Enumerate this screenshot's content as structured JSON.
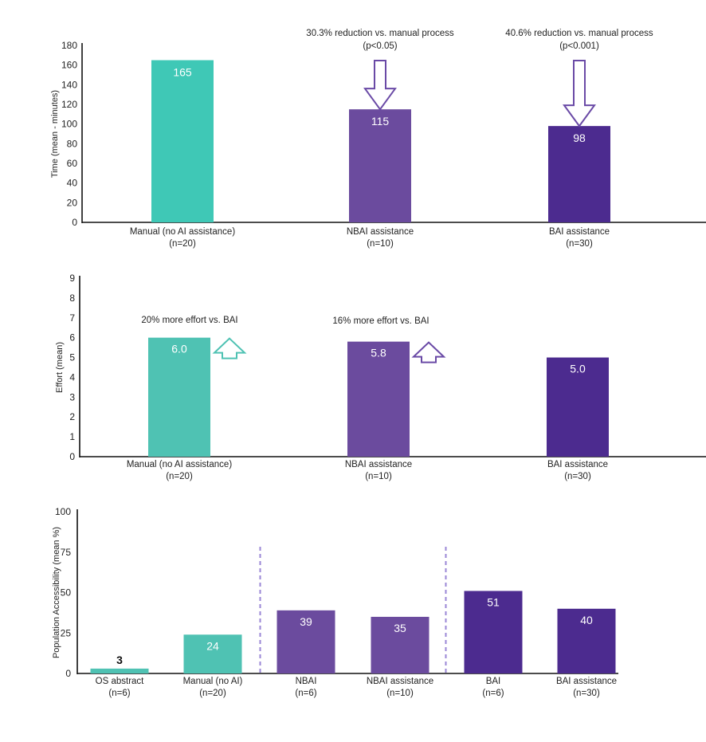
{
  "colors": {
    "teal": "#3fc8b6",
    "teal2": "#4fc2b3",
    "purple_mid": "#6b4b9e",
    "purple_dark": "#4c2b8f",
    "arrow_purple": "#6a4aa6",
    "arrow_teal": "#4fc2b3",
    "divider": "#9a86d6"
  },
  "chart_data": [
    {
      "type": "bar",
      "title": "",
      "ylabel": "Time (mean - minutes)",
      "xlabel": "",
      "ylim": [
        0,
        180
      ],
      "yticks": [
        0,
        20,
        40,
        60,
        80,
        100,
        120,
        140,
        160,
        180
      ],
      "categories": [
        "Manual (no AI assistance)",
        "NBAI assistance",
        "BAI assistance"
      ],
      "category_n": [
        "(n=20)",
        "(n=10)",
        "(n=30)"
      ],
      "values": [
        165,
        115,
        98
      ],
      "value_labels": [
        "165",
        "115",
        "98"
      ],
      "bar_colors": [
        "#3fc8b6",
        "#6b4b9e",
        "#4c2b8f"
      ],
      "annotations": [
        {
          "category": "NBAI assistance",
          "line1": "30.3% reduction vs. manual process",
          "line2": "(p<0.05)",
          "arrow": "down"
        },
        {
          "category": "BAI assistance",
          "line1": "40.6% reduction vs. manual process",
          "line2": "(p<0.001)",
          "arrow": "down"
        }
      ],
      "grid": false
    },
    {
      "type": "bar",
      "title": "",
      "ylabel": "Effort (mean)",
      "xlabel": "",
      "ylim": [
        0,
        9
      ],
      "yticks": [
        0,
        1,
        2,
        3,
        4,
        5,
        6,
        7,
        8,
        9
      ],
      "categories": [
        "Manual (no AI assistance)",
        "NBAI assistance",
        "BAI assistance"
      ],
      "category_n": [
        "(n=20)",
        "(n=10)",
        "(n=30)"
      ],
      "values": [
        6.0,
        5.8,
        5.0
      ],
      "value_labels": [
        "6.0",
        "5.8",
        "5.0"
      ],
      "bar_colors": [
        "#4fc2b3",
        "#6b4b9e",
        "#4c2b8f"
      ],
      "annotations": [
        {
          "category": "Manual (no AI assistance)",
          "line1": "20% more effort vs. BAI",
          "arrow": "up"
        },
        {
          "category": "NBAI assistance",
          "line1": "16% more effort vs. BAI",
          "arrow": "up"
        }
      ],
      "grid": false
    },
    {
      "type": "bar",
      "title": "",
      "ylabel": "Population Accessibility (mean %)",
      "xlabel": "",
      "ylim": [
        0,
        100
      ],
      "yticks": [
        0,
        25,
        50,
        75,
        100
      ],
      "categories": [
        "OS abstract",
        "Manual (no AI)",
        "NBAI",
        "NBAI assistance",
        "BAI",
        "BAI assistance"
      ],
      "category_n": [
        "(n=6)",
        "(n=20)",
        "(n=6)",
        "(n=10)",
        "(n=6)",
        "(n=30)"
      ],
      "values": [
        3,
        24,
        39,
        35,
        51,
        40
      ],
      "value_labels": [
        "3",
        "24",
        "39",
        "35",
        "51",
        "40"
      ],
      "bar_colors": [
        "#4fc2b3",
        "#4fc2b3",
        "#6b4b9e",
        "#6b4b9e",
        "#4c2b8f",
        "#4c2b8f"
      ],
      "group_dividers_after": [
        1,
        3
      ],
      "grid": false
    }
  ]
}
